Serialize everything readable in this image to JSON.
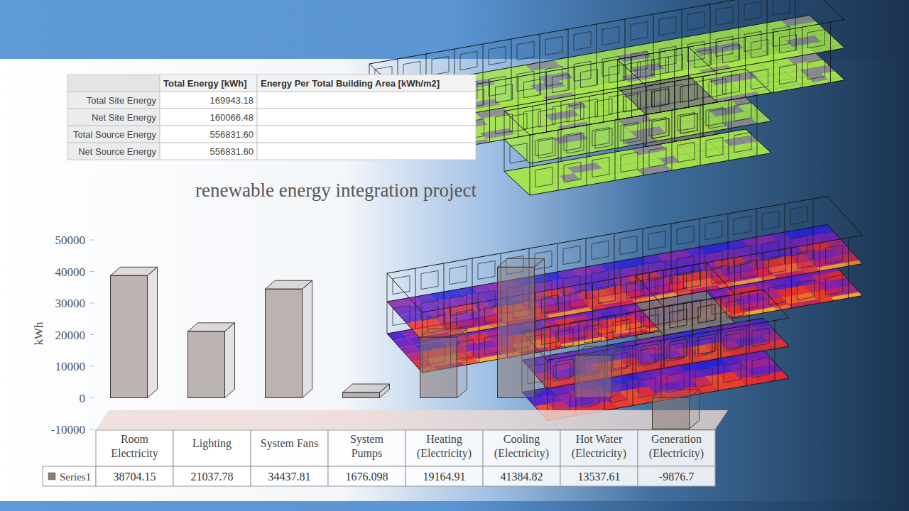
{
  "table": {
    "columns": [
      "Total Energy [kWh]",
      "Energy Per Total Building Area [kWh/m2]"
    ],
    "rows": [
      [
        "Total Site Energy",
        "169943.18"
      ],
      [
        "Net Site Energy",
        "160066.48"
      ],
      [
        "Total Source Energy",
        "556831.60"
      ],
      [
        "Net Source Energy",
        "556831.60"
      ]
    ]
  },
  "chart_data": {
    "type": "bar",
    "title": "renewable energy integration project",
    "y_label": "kWh",
    "categories": [
      "Room Electricity",
      "Lighting",
      "System Fans",
      "System Pumps",
      "Heating (Electricity)",
      "Cooling (Electricity)",
      "Hot Water (Electricity)",
      "Generation (Electricity)"
    ],
    "series": [
      {
        "name": "Series1",
        "color": "#8a7a74",
        "values": [
          38704.15,
          21037.78,
          34437.81,
          1676.098,
          19164.91,
          41384.82,
          13537.61,
          -9876.7
        ]
      }
    ],
    "ylim": [
      -10000,
      50000
    ],
    "yticks": [
      -10000,
      0,
      10000,
      20000,
      30000,
      40000,
      50000
    ],
    "grid": false,
    "legend": "bottom",
    "data_labels": true
  }
}
